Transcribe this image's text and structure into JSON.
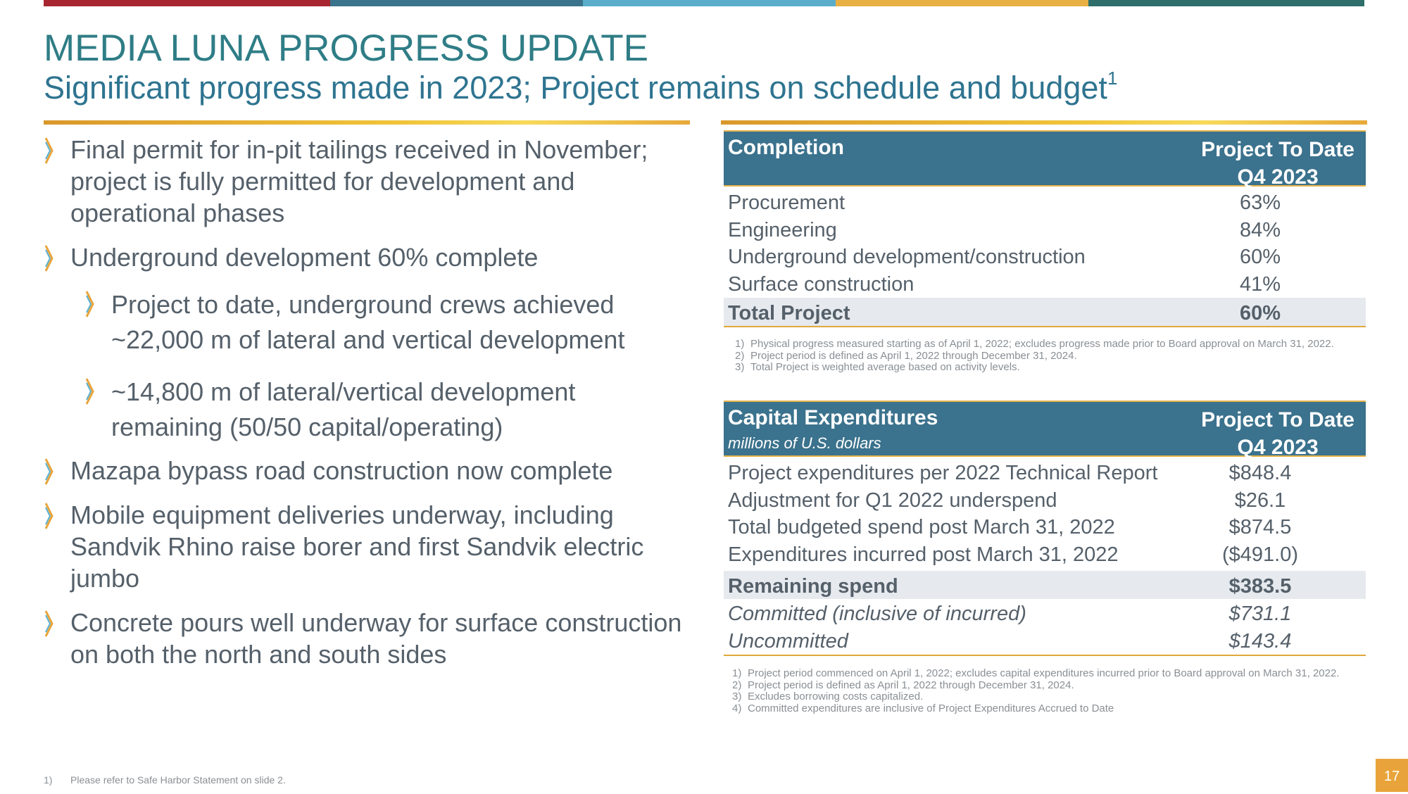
{
  "colors": {
    "top_bar": [
      "#a8262f",
      "#3b738c",
      "#5aaecc",
      "#e8b043",
      "#2e6f6c"
    ],
    "title": "#2f7d86",
    "table_header": "#3b728d",
    "accent": "#e8a43a"
  },
  "header": {
    "title": "MEDIA LUNA PROGRESS UPDATE",
    "subtitle": "Significant progress made in 2023; Project remains on schedule and budget",
    "subtitle_sup": "1"
  },
  "bullets": [
    {
      "text": "Final permit for in-pit tailings received in November; project is fully permitted for development and operational phases",
      "icon": "chevron-right-icon"
    },
    {
      "text": "Underground development 60% complete",
      "icon": "chevron-right-icon"
    },
    {
      "text": "Project to date, underground crews achieved ~22,000 m of lateral and vertical development",
      "icon": "chevron-right-icon"
    },
    {
      "text": "~14,800 m of lateral/vertical development remaining (50/50 capital/operating)",
      "icon": "chevron-right-icon"
    },
    {
      "text": "Mazapa bypass road construction now complete",
      "icon": "chevron-right-icon"
    },
    {
      "text": "Mobile equipment deliveries underway, including Sandvik Rhino raise borer and first Sandvik electric jumbo",
      "icon": "chevron-right-icon"
    },
    {
      "text": "Concrete pours well underway for surface construction on both the north and south sides",
      "icon": "chevron-right-icon"
    }
  ],
  "completion_table": {
    "col1": "Completion",
    "col2_line1": "Project To Date",
    "col2_line2": "Q4 2023",
    "rows": [
      {
        "label": "Procurement",
        "value": "63%"
      },
      {
        "label": "Engineering",
        "value": "84%"
      },
      {
        "label": "Underground development/construction",
        "value": "60%"
      },
      {
        "label": "Surface construction",
        "value": "41%"
      }
    ],
    "total": {
      "label": "Total Project",
      "value": "60%"
    },
    "notes": [
      {
        "n": "1)",
        "text": "Physical progress measured starting as of April 1, 2022; excludes progress made prior to Board approval on March 31, 2022."
      },
      {
        "n": "2)",
        "text": "Project period is defined as April 1, 2022 through December 31, 2024."
      },
      {
        "n": "3)",
        "text": "Total Project is weighted average based on activity levels."
      }
    ]
  },
  "capex_table": {
    "col1": "Capital Expenditures",
    "col1_sub": "millions of U.S. dollars",
    "col2_line1": "Project To Date",
    "col2_line2": "Q4 2023",
    "rows": [
      {
        "label": "Project expenditures per 2022 Technical Report",
        "value": "$848.4"
      },
      {
        "label": "Adjustment for Q1 2022 underspend",
        "value": "$26.1"
      },
      {
        "label": "Total budgeted spend post March 31, 2022",
        "value": "$874.5"
      },
      {
        "label": "Expenditures incurred post March 31, 2022",
        "value": "($491.0)"
      }
    ],
    "total": {
      "label": "Remaining spend",
      "value": "$383.5"
    },
    "italic_rows": [
      {
        "label": "Committed (inclusive of incurred)",
        "value": "$731.1"
      },
      {
        "label": "Uncommitted",
        "value": "$143.4"
      }
    ],
    "notes": [
      {
        "n": "1)",
        "text": "Project period commenced on April 1, 2022; excludes capital expenditures incurred prior to Board approval on March 31, 2022."
      },
      {
        "n": "2)",
        "text": "Project period is defined as April 1, 2022 through December 31, 2024."
      },
      {
        "n": "3)",
        "text": "Excludes borrowing costs capitalized."
      },
      {
        "n": "4)",
        "text": "Committed expenditures are inclusive of Project Expenditures Accrued to Date"
      }
    ]
  },
  "footnote": {
    "n": "1)",
    "text": "Please refer to Safe Harbor Statement on slide 2."
  },
  "page_number": "17"
}
